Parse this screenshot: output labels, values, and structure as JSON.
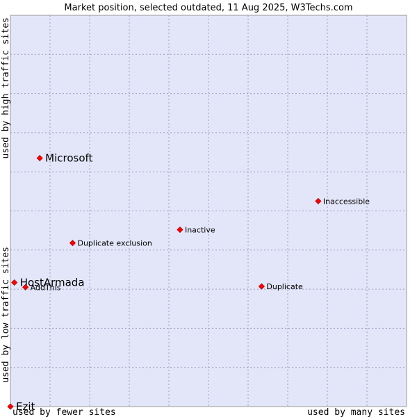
{
  "chart_data": {
    "type": "scatter",
    "title": "Market position, selected outdated, 11 Aug 2025, W3Techs.com",
    "xlabel_left": "used by fewer sites",
    "xlabel_right": "used by many sites",
    "ylabel_top": "used by high traffic sites",
    "ylabel_bottom": "used by low traffic sites",
    "xlim": [
      0,
      100
    ],
    "ylim": [
      0,
      100
    ],
    "grid": true,
    "marker_color": "#ff0000",
    "plot_background": "#e3e5f8",
    "points": [
      {
        "name": "Microsoft",
        "x": 7.4,
        "y": 63.5,
        "size": "large"
      },
      {
        "name": "Inaccessible",
        "x": 77.7,
        "y": 52.5,
        "size": "small"
      },
      {
        "name": "Inactive",
        "x": 42.8,
        "y": 45.2,
        "size": "small"
      },
      {
        "name": "Duplicate exclusion",
        "x": 15.7,
        "y": 41.8,
        "size": "small"
      },
      {
        "name": "HostArmada",
        "x": 1.0,
        "y": 31.7,
        "size": "large"
      },
      {
        "name": "AddThis",
        "x": 3.8,
        "y": 30.5,
        "size": "small"
      },
      {
        "name": "Duplicate",
        "x": 63.4,
        "y": 30.7,
        "size": "small"
      },
      {
        "name": "Ezit",
        "x": 0.0,
        "y": 0.0,
        "size": "large"
      }
    ]
  }
}
